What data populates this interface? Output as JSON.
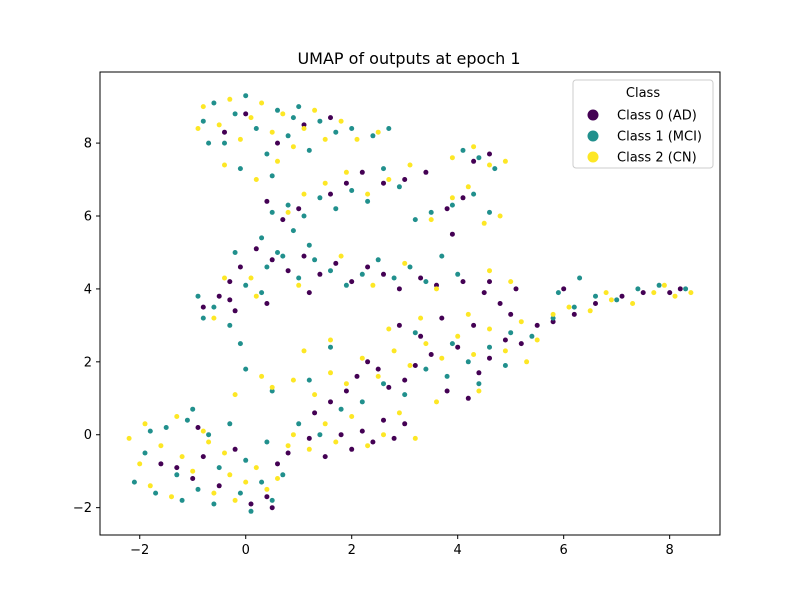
{
  "chart_data": {
    "type": "scatter",
    "title": "UMAP of outputs at epoch 1",
    "xlabel": "",
    "ylabel": "",
    "xlim": [
      -2.75,
      8.95
    ],
    "ylim": [
      -2.75,
      9.95
    ],
    "xticks": [
      -2,
      0,
      2,
      4,
      6,
      8
    ],
    "yticks": [
      -2,
      0,
      2,
      4,
      6,
      8
    ],
    "xtick_labels": [
      "−2",
      "0",
      "2",
      "4",
      "6",
      "8"
    ],
    "ytick_labels": [
      "−2",
      "0",
      "2",
      "4",
      "6",
      "8"
    ],
    "grid": false,
    "legend": {
      "title": "Class",
      "position": "top-right",
      "entries": [
        "Class 0 (AD)",
        "Class 1 (MCI)",
        "Class 2 (CN)"
      ]
    },
    "series": [
      {
        "name": "Class 0 (AD)",
        "color": "#440154",
        "points": [
          [
            -1.6,
            -0.8
          ],
          [
            -1.3,
            -0.9
          ],
          [
            -1.0,
            -1.2
          ],
          [
            -0.8,
            -0.6
          ],
          [
            -0.5,
            -1.4
          ],
          [
            0.1,
            -1.9
          ],
          [
            0.4,
            -1.7
          ],
          [
            0.5,
            -2.0
          ],
          [
            -0.9,
            0.2
          ],
          [
            -0.2,
            -0.4
          ],
          [
            0.6,
            -0.8
          ],
          [
            0.8,
            -0.5
          ],
          [
            1.2,
            -0.1
          ],
          [
            1.5,
            -0.6
          ],
          [
            1.8,
            0.0
          ],
          [
            2.0,
            -0.4
          ],
          [
            2.2,
            0.1
          ],
          [
            2.4,
            -0.2
          ],
          [
            2.6,
            0.4
          ],
          [
            2.8,
            -0.1
          ],
          [
            3.0,
            0.3
          ],
          [
            1.3,
            0.6
          ],
          [
            1.6,
            0.9
          ],
          [
            1.9,
            1.2
          ],
          [
            2.1,
            1.6
          ],
          [
            2.3,
            2.0
          ],
          [
            2.5,
            1.8
          ],
          [
            2.7,
            1.3
          ],
          [
            3.0,
            1.5
          ],
          [
            3.2,
            1.9
          ],
          [
            3.5,
            2.2
          ],
          [
            3.8,
            1.2
          ],
          [
            4.0,
            2.4
          ],
          [
            4.2,
            1.0
          ],
          [
            4.4,
            1.7
          ],
          [
            4.6,
            2.1
          ],
          [
            4.9,
            2.6
          ],
          [
            5.2,
            2.5
          ],
          [
            5.5,
            3.0
          ],
          [
            5.8,
            3.1
          ],
          [
            6.2,
            3.3
          ],
          [
            6.6,
            3.6
          ],
          [
            6.0,
            4.0
          ],
          [
            7.1,
            3.8
          ],
          [
            7.5,
            3.9
          ],
          [
            8.0,
            3.9
          ],
          [
            8.2,
            4.0
          ],
          [
            4.8,
            3.6
          ],
          [
            4.5,
            3.9
          ],
          [
            4.1,
            4.2
          ],
          [
            3.6,
            4.1
          ],
          [
            3.3,
            4.3
          ],
          [
            2.9,
            4.0
          ],
          [
            2.6,
            4.4
          ],
          [
            2.3,
            4.6
          ],
          [
            2.0,
            4.2
          ],
          [
            1.7,
            4.7
          ],
          [
            1.4,
            4.4
          ],
          [
            1.1,
            4.9
          ],
          [
            0.8,
            4.5
          ],
          [
            0.5,
            4.8
          ],
          [
            0.2,
            5.1
          ],
          [
            -0.1,
            4.6
          ],
          [
            -0.3,
            4.2
          ],
          [
            -0.5,
            3.8
          ],
          [
            -0.8,
            3.5
          ],
          [
            -0.2,
            3.4
          ],
          [
            -0.3,
            3.7
          ],
          [
            0.4,
            3.6
          ],
          [
            1.2,
            3.9
          ],
          [
            0.7,
            5.9
          ],
          [
            1.0,
            6.2
          ],
          [
            0.4,
            6.4
          ],
          [
            1.6,
            6.6
          ],
          [
            1.9,
            6.9
          ],
          [
            2.2,
            7.2
          ],
          [
            2.6,
            6.9
          ],
          [
            3.0,
            7.0
          ],
          [
            3.4,
            7.2
          ],
          [
            3.8,
            6.2
          ],
          [
            4.1,
            6.5
          ],
          [
            4.3,
            7.5
          ],
          [
            4.6,
            7.7
          ],
          [
            0.0,
            8.8
          ],
          [
            0.6,
            8.0
          ],
          [
            1.1,
            8.5
          ],
          [
            -0.4,
            8.3
          ],
          [
            1.6,
            8.7
          ],
          [
            2.9,
            3.0
          ],
          [
            3.3,
            2.7
          ],
          [
            3.7,
            3.2
          ],
          [
            4.3,
            3.0
          ],
          [
            5.0,
            3.3
          ],
          [
            4.6,
            4.2
          ],
          [
            5.1,
            4.0
          ],
          [
            3.9,
            5.5
          ]
        ]
      },
      {
        "name": "Class 1 (MCI)",
        "color": "#21908d",
        "points": [
          [
            -2.1,
            -1.3
          ],
          [
            -1.9,
            -0.5
          ],
          [
            -1.7,
            -1.6
          ],
          [
            -1.5,
            0.2
          ],
          [
            -1.3,
            -1.1
          ],
          [
            -1.1,
            0.4
          ],
          [
            -0.9,
            -1.5
          ],
          [
            -0.7,
            0.0
          ],
          [
            -0.5,
            -0.9
          ],
          [
            -0.3,
            0.3
          ],
          [
            -0.1,
            -1.6
          ],
          [
            0.1,
            -2.1
          ],
          [
            0.3,
            -1.3
          ],
          [
            0.5,
            -1.8
          ],
          [
            0.7,
            -1.1
          ],
          [
            -1.2,
            -1.8
          ],
          [
            -0.6,
            -1.9
          ],
          [
            0.0,
            -0.7
          ],
          [
            -1.8,
            0.1
          ],
          [
            -1.0,
            0.7
          ],
          [
            0.4,
            -0.2
          ],
          [
            1.0,
            0.3
          ],
          [
            1.4,
            0.0
          ],
          [
            1.8,
            0.7
          ],
          [
            2.2,
            0.9
          ],
          [
            2.6,
            1.4
          ],
          [
            3.0,
            1.1
          ],
          [
            3.4,
            1.8
          ],
          [
            3.8,
            1.6
          ],
          [
            4.2,
            2.0
          ],
          [
            4.6,
            2.4
          ],
          [
            5.0,
            2.8
          ],
          [
            5.4,
            2.7
          ],
          [
            5.8,
            3.2
          ],
          [
            6.2,
            3.5
          ],
          [
            6.6,
            3.8
          ],
          [
            7.0,
            3.7
          ],
          [
            7.4,
            4.0
          ],
          [
            7.8,
            4.1
          ],
          [
            8.3,
            4.0
          ],
          [
            6.3,
            4.3
          ],
          [
            5.9,
            3.9
          ],
          [
            4.9,
            1.9
          ],
          [
            4.4,
            1.4
          ],
          [
            3.9,
            2.5
          ],
          [
            3.2,
            2.8
          ],
          [
            1.2,
            1.5
          ],
          [
            0.5,
            1.2
          ],
          [
            0.0,
            1.8
          ],
          [
            1.6,
            2.4
          ],
          [
            -0.8,
            3.2
          ],
          [
            -0.9,
            3.8
          ],
          [
            -0.6,
            3.5
          ],
          [
            -0.3,
            3.0
          ],
          [
            -0.1,
            2.5
          ],
          [
            0.3,
            3.9
          ],
          [
            0.0,
            4.1
          ],
          [
            0.4,
            4.6
          ],
          [
            0.7,
            4.9
          ],
          [
            1.0,
            4.3
          ],
          [
            1.3,
            4.8
          ],
          [
            1.6,
            4.5
          ],
          [
            1.9,
            4.1
          ],
          [
            2.2,
            4.4
          ],
          [
            2.5,
            4.8
          ],
          [
            2.8,
            4.3
          ],
          [
            3.1,
            4.6
          ],
          [
            3.4,
            4.2
          ],
          [
            3.7,
            4.9
          ],
          [
            4.0,
            4.4
          ],
          [
            0.3,
            5.4
          ],
          [
            0.6,
            5.0
          ],
          [
            0.9,
            5.6
          ],
          [
            1.2,
            5.2
          ],
          [
            -0.2,
            5.0
          ],
          [
            0.5,
            6.1
          ],
          [
            0.8,
            6.3
          ],
          [
            1.1,
            6.0
          ],
          [
            1.4,
            6.5
          ],
          [
            1.7,
            6.2
          ],
          [
            2.0,
            6.7
          ],
          [
            2.3,
            6.4
          ],
          [
            2.6,
            7.3
          ],
          [
            2.9,
            6.8
          ],
          [
            3.2,
            5.9
          ],
          [
            3.5,
            6.1
          ],
          [
            3.9,
            6.3
          ],
          [
            4.3,
            6.6
          ],
          [
            4.6,
            6.1
          ],
          [
            4.1,
            7.8
          ],
          [
            4.4,
            7.6
          ],
          [
            4.7,
            7.3
          ],
          [
            -0.8,
            8.6
          ],
          [
            -0.6,
            9.1
          ],
          [
            -0.4,
            8.0
          ],
          [
            -0.2,
            8.8
          ],
          [
            0.0,
            9.3
          ],
          [
            0.2,
            8.4
          ],
          [
            0.4,
            7.7
          ],
          [
            0.6,
            8.9
          ],
          [
            0.8,
            8.2
          ],
          [
            1.0,
            9.0
          ],
          [
            1.2,
            7.8
          ],
          [
            1.4,
            8.6
          ],
          [
            1.7,
            8.3
          ],
          [
            2.0,
            8.4
          ],
          [
            2.4,
            8.2
          ],
          [
            2.7,
            8.4
          ],
          [
            -0.1,
            7.3
          ],
          [
            0.5,
            7.1
          ],
          [
            -0.7,
            8.0
          ],
          [
            0.9,
            8.7
          ]
        ]
      },
      {
        "name": "Class 2 (CN)",
        "color": "#fde725",
        "points": [
          [
            -2.2,
            -0.1
          ],
          [
            -2.0,
            -0.8
          ],
          [
            -1.8,
            -1.4
          ],
          [
            -1.6,
            -0.3
          ],
          [
            -1.4,
            -1.7
          ],
          [
            -1.2,
            -0.6
          ],
          [
            -1.0,
            -1.0
          ],
          [
            -0.8,
            0.1
          ],
          [
            -0.6,
            -1.6
          ],
          [
            -0.4,
            -0.5
          ],
          [
            -0.2,
            -1.8
          ],
          [
            0.0,
            -1.3
          ],
          [
            0.2,
            -0.9
          ],
          [
            0.4,
            -1.5
          ],
          [
            0.6,
            -1.2
          ],
          [
            0.8,
            -0.3
          ],
          [
            -1.9,
            0.3
          ],
          [
            -1.3,
            0.5
          ],
          [
            -0.7,
            -0.2
          ],
          [
            -0.3,
            -1.1
          ],
          [
            0.9,
            0.0
          ],
          [
            1.2,
            -0.4
          ],
          [
            1.5,
            0.3
          ],
          [
            1.7,
            -0.2
          ],
          [
            2.0,
            0.5
          ],
          [
            2.3,
            -0.3
          ],
          [
            2.6,
            0.0
          ],
          [
            2.9,
            0.6
          ],
          [
            3.2,
            -0.1
          ],
          [
            0.5,
            1.3
          ],
          [
            0.9,
            1.5
          ],
          [
            1.3,
            1.1
          ],
          [
            1.6,
            1.7
          ],
          [
            1.9,
            1.4
          ],
          [
            2.2,
            2.1
          ],
          [
            2.5,
            1.6
          ],
          [
            2.8,
            2.3
          ],
          [
            3.1,
            1.9
          ],
          [
            3.4,
            2.5
          ],
          [
            3.7,
            2.1
          ],
          [
            4.0,
            2.7
          ],
          [
            4.3,
            2.2
          ],
          [
            4.6,
            2.9
          ],
          [
            4.9,
            2.3
          ],
          [
            5.2,
            3.1
          ],
          [
            5.5,
            2.6
          ],
          [
            5.8,
            3.3
          ],
          [
            6.1,
            3.5
          ],
          [
            6.5,
            3.4
          ],
          [
            6.9,
            3.7
          ],
          [
            7.3,
            3.6
          ],
          [
            7.7,
            3.9
          ],
          [
            8.1,
            3.8
          ],
          [
            8.4,
            3.9
          ],
          [
            7.9,
            4.1
          ],
          [
            6.8,
            3.9
          ],
          [
            4.6,
            4.5
          ],
          [
            5.0,
            4.2
          ],
          [
            3.6,
            4.0
          ],
          [
            3.0,
            4.7
          ],
          [
            2.4,
            4.1
          ],
          [
            1.8,
            4.9
          ],
          [
            1.0,
            4.1
          ],
          [
            0.1,
            4.3
          ],
          [
            -0.4,
            4.3
          ],
          [
            -0.6,
            3.2
          ],
          [
            0.2,
            3.8
          ],
          [
            0.8,
            6.1
          ],
          [
            1.1,
            6.6
          ],
          [
            1.5,
            6.9
          ],
          [
            1.9,
            7.2
          ],
          [
            2.3,
            6.6
          ],
          [
            2.7,
            7.0
          ],
          [
            3.1,
            7.4
          ],
          [
            3.5,
            5.9
          ],
          [
            3.9,
            6.5
          ],
          [
            4.2,
            6.8
          ],
          [
            4.5,
            5.8
          ],
          [
            4.8,
            6.0
          ],
          [
            3.9,
            7.6
          ],
          [
            4.3,
            7.9
          ],
          [
            4.6,
            7.4
          ],
          [
            4.9,
            7.5
          ],
          [
            -0.8,
            9.0
          ],
          [
            -0.5,
            8.5
          ],
          [
            -0.3,
            9.2
          ],
          [
            -0.1,
            8.1
          ],
          [
            0.1,
            8.7
          ],
          [
            0.3,
            9.1
          ],
          [
            0.5,
            8.3
          ],
          [
            0.7,
            8.8
          ],
          [
            0.9,
            7.9
          ],
          [
            1.1,
            8.4
          ],
          [
            1.3,
            8.9
          ],
          [
            1.5,
            8.1
          ],
          [
            1.8,
            8.6
          ],
          [
            2.1,
            8.1
          ],
          [
            2.5,
            8.3
          ],
          [
            -0.4,
            7.4
          ],
          [
            0.2,
            7.0
          ],
          [
            0.6,
            7.5
          ],
          [
            -0.9,
            8.4
          ],
          [
            1.6,
            2.6
          ],
          [
            1.1,
            2.3
          ],
          [
            0.3,
            1.6
          ],
          [
            -0.2,
            1.1
          ],
          [
            4.4,
            1.2
          ],
          [
            5.3,
            2.0
          ],
          [
            3.6,
            0.9
          ],
          [
            2.7,
            2.9
          ],
          [
            3.3,
            3.2
          ],
          [
            4.2,
            3.3
          ]
        ]
      }
    ]
  }
}
